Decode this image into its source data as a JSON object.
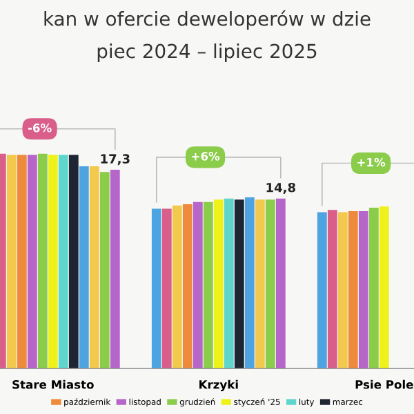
{
  "chart_data": {
    "type": "bar",
    "title": "kan w ofercie deweloperów w dzie",
    "subtitle": "piec 2024 – lipiec 2025",
    "categories": [
      "Stare Miasto",
      "Krzyki",
      "Psie Pole"
    ],
    "series": [
      {
        "color": "#4ea4e0",
        "values": [
          null,
          13.9,
          13.6
        ]
      },
      {
        "color": "#d95f8a",
        "values": [
          18.7,
          13.9,
          13.8
        ]
      },
      {
        "color": "#f2c94c",
        "values": [
          18.6,
          14.2,
          13.6
        ]
      },
      {
        "name": "październik",
        "color": "#ee8a3c",
        "values": [
          18.6,
          14.3,
          13.7
        ]
      },
      {
        "name": "listopad",
        "color": "#b665c9",
        "values": [
          18.6,
          14.5,
          13.7
        ]
      },
      {
        "name": "grudzień",
        "color": "#8bcc4a",
        "values": [
          18.7,
          14.5,
          14.0
        ]
      },
      {
        "name": "styczeń '25",
        "color": "#eef21a",
        "values": [
          18.6,
          14.7,
          14.1
        ]
      },
      {
        "name": "luty",
        "color": "#5fd6cc",
        "values": [
          18.6,
          14.8,
          null
        ]
      },
      {
        "name": "marzec",
        "color": "#1f2633",
        "values": [
          18.6,
          14.7,
          null
        ]
      },
      {
        "color": "#4ea4e0",
        "values": [
          17.6,
          14.9,
          null
        ]
      },
      {
        "color": "#f2c94c",
        "values": [
          17.6,
          14.7,
          null
        ]
      },
      {
        "color": "#8bcc4a",
        "values": [
          17.1,
          14.7,
          null
        ]
      },
      {
        "color": "#b665c9",
        "values": [
          17.3,
          14.8,
          null
        ],
        "value_labels": [
          "17,3",
          "14,8",
          null
        ]
      }
    ],
    "annotations": [
      "-6%",
      "+6%",
      "+1%"
    ],
    "legend": "bottom",
    "grid": false
  }
}
